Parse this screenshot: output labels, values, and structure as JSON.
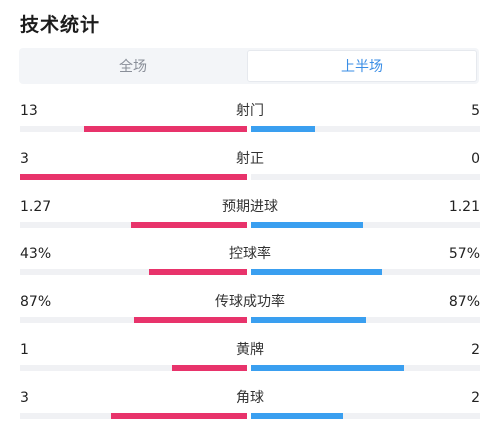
{
  "header": {
    "title": "技术统计"
  },
  "tabs": [
    {
      "label": "全场",
      "active": false
    },
    {
      "label": "上半场",
      "active": true
    }
  ],
  "colors": {
    "home": "#e8336b",
    "away": "#3a9ff0",
    "tab_active": "#3a8ee6"
  },
  "stats": [
    {
      "label": "射门",
      "home": "13",
      "away": "5",
      "home_fraction": 0.72,
      "away_fraction": 0.28
    },
    {
      "label": "射正",
      "home": "3",
      "away": "0",
      "home_fraction": 1.0,
      "away_fraction": 0.0
    },
    {
      "label": "预期进球",
      "home": "1.27",
      "away": "1.21",
      "home_fraction": 0.51,
      "away_fraction": 0.49
    },
    {
      "label": "控球率",
      "home": "43%",
      "away": "57%",
      "home_fraction": 0.43,
      "away_fraction": 0.57
    },
    {
      "label": "传球成功率",
      "home": "87%",
      "away": "87%",
      "home_fraction": 0.5,
      "away_fraction": 0.5
    },
    {
      "label": "黄牌",
      "home": "1",
      "away": "2",
      "home_fraction": 0.33,
      "away_fraction": 0.67
    },
    {
      "label": "角球",
      "home": "3",
      "away": "2",
      "home_fraction": 0.6,
      "away_fraction": 0.4
    }
  ]
}
